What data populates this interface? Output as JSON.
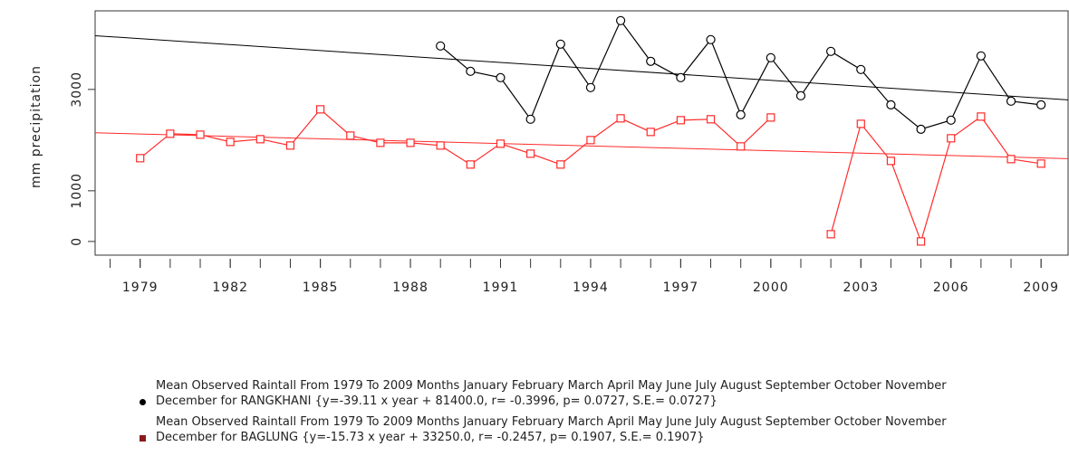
{
  "chart_data": {
    "type": "line",
    "y_label": "mm precipitation",
    "x": [
      1979,
      1980,
      1981,
      1982,
      1983,
      1984,
      1985,
      1986,
      1987,
      1988,
      1989,
      1990,
      1991,
      1992,
      1993,
      1994,
      1995,
      1996,
      1997,
      1998,
      1999,
      2000,
      2001,
      2002,
      2003,
      2004,
      2005,
      2006,
      2007,
      2008,
      2009
    ],
    "series": [
      {
        "name": "Mean Observed Raintall From 1979 To 2009 Months January February March April May June July August September October November December for RANGKHANI {y=-39.11 x year + 81400.0, r= -0.3996, p= 0.0727, S.E.= 0.0727}",
        "color": "#000000",
        "legend_color": "#000000",
        "marker": "circle",
        "trend_slope": -39.11,
        "trend_intercept": 81400.0,
        "values": [
          null,
          null,
          null,
          null,
          null,
          null,
          null,
          null,
          null,
          null,
          3857,
          3357,
          3232,
          2411,
          3893,
          3036,
          4357,
          3554,
          3232,
          3982,
          2500,
          3625,
          2875,
          3750,
          3393,
          2696,
          2214,
          2393,
          3661,
          2768,
          2696
        ]
      },
      {
        "name": "Mean Observed Raintall From 1979 To 2009 Months January February March April May June July August September October November December for BAGLUNG {y=-15.73 x year + 33250.0, r= -0.2457, p= 0.1907, S.E.= 0.1907}",
        "color": "#ff2a2a",
        "legend_color": "#8b1a1a",
        "marker": "square",
        "trend_slope": -15.73,
        "trend_intercept": 33250.0,
        "values": [
          1643,
          2125,
          2107,
          1964,
          2018,
          1893,
          2607,
          2089,
          1946,
          1946,
          1893,
          1518,
          1929,
          1732,
          1518,
          2000,
          2429,
          2161,
          2393,
          2411,
          1875,
          2446,
          null,
          143,
          2321,
          1589,
          0,
          2036,
          2464,
          1625,
          1536
        ]
      }
    ],
    "xlim": [
      1977.5,
      2009.9
    ],
    "ylim": [
      -270,
      4550
    ],
    "xticks": [
      1979,
      1982,
      1985,
      1988,
      1991,
      1994,
      1997,
      2000,
      2003,
      2006,
      2009
    ],
    "xminor_ticks": [
      1978,
      1979,
      1980,
      1981,
      1982,
      1983,
      1984,
      1985,
      1986,
      1987,
      1988,
      1989,
      1990,
      1991,
      1992,
      1993,
      1994,
      1995,
      1996,
      1997,
      1998,
      1999,
      2000,
      2001,
      2002,
      2003,
      2004,
      2005,
      2006,
      2007,
      2008,
      2009
    ],
    "yticks": [
      0,
      1000,
      3000
    ]
  }
}
